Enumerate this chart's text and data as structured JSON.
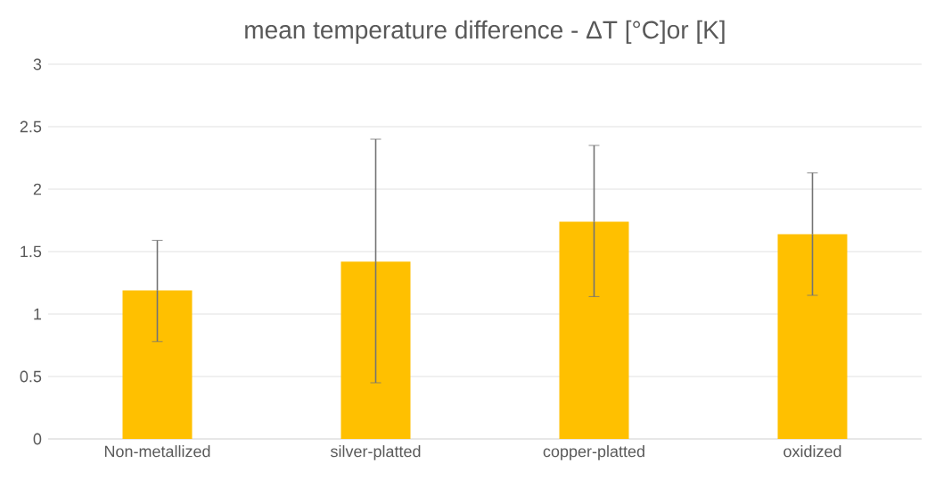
{
  "chart_data": {
    "type": "bar",
    "title": "mean temperature difference - ΔT [°C]or [K]",
    "categories": [
      "Non-metallized",
      "silver-platted",
      "copper-platted",
      "oxidized"
    ],
    "values": [
      1.19,
      1.42,
      1.74,
      1.64
    ],
    "errors": [
      [
        0.78,
        1.59
      ],
      [
        0.45,
        2.4
      ],
      [
        1.14,
        2.35
      ],
      [
        1.15,
        2.13
      ]
    ],
    "color": "#ffc000",
    "ylim": [
      0,
      3
    ],
    "yticks": [
      0,
      0.5,
      1,
      1.5,
      2,
      2.5,
      3
    ],
    "grid": "y"
  }
}
